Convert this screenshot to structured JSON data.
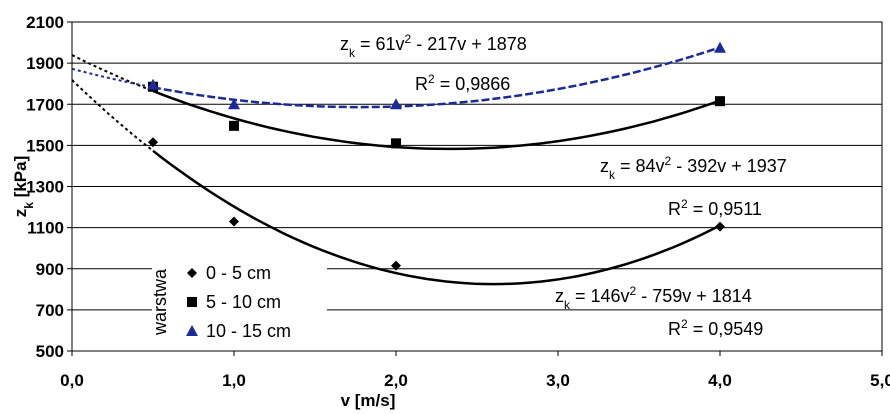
{
  "chart_data": {
    "type": "scatter",
    "xlabel": "v [m/s]",
    "ylabel": [
      "z",
      "k",
      " [kPa]"
    ],
    "legend_title": "warstwa",
    "legend": "lower left",
    "grid": true,
    "x": [
      0.5,
      1,
      2,
      4
    ],
    "xlim": [
      0,
      5
    ],
    "xticks": [
      {
        "value": 0,
        "label": "0,0"
      },
      {
        "value": 1,
        "label": "1,0"
      },
      {
        "value": 2,
        "label": "2,0"
      },
      {
        "value": 3,
        "label": "3,0"
      },
      {
        "value": 4,
        "label": "4,0"
      },
      {
        "value": 5,
        "label": "5,0"
      }
    ],
    "ylim": [
      500,
      2100
    ],
    "yticks": [
      500,
      700,
      900,
      1100,
      1300,
      1500,
      1700,
      1900,
      2100
    ],
    "series": [
      {
        "name": "0 - 5 cm",
        "color": "#000000",
        "marker": "diamond",
        "values": [
          1515,
          1130,
          915,
          1105
        ],
        "equation": [
          "z",
          "k",
          " = 146v",
          "2",
          " - 759v + 1814"
        ],
        "r_squared": [
          "R",
          "2",
          " = 0,9549"
        ]
      },
      {
        "name": "5 - 10 cm",
        "color": "#000000",
        "marker": "square",
        "values": [
          1785,
          1595,
          1510,
          1715
        ],
        "equation": [
          "z",
          "k",
          " = 84v",
          "2",
          " - 392v + 1937"
        ],
        "r_squared": [
          "R",
          "2",
          " = 0,9511"
        ]
      },
      {
        "name": "10 - 15 cm",
        "color": "#1c2a99",
        "marker": "triangle",
        "values": [
          1795,
          1700,
          1700,
          1975
        ],
        "equation": [
          "z",
          "k",
          " = 61v",
          "2",
          " - 217v + 1878"
        ],
        "r_squared": [
          "R",
          "2",
          " = 0,9866"
        ]
      }
    ]
  }
}
